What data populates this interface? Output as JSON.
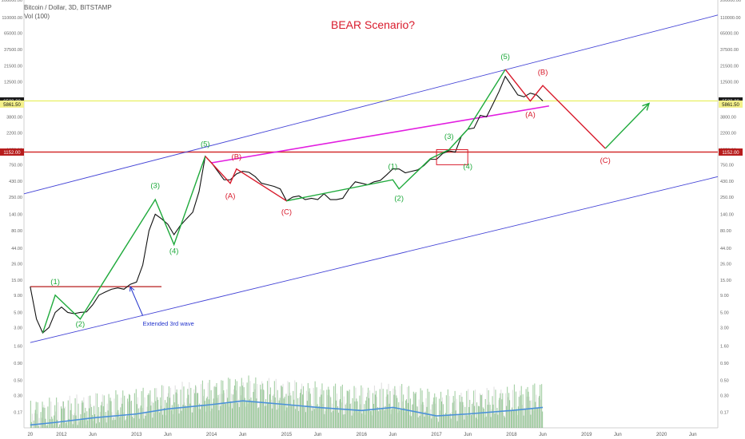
{
  "header": {
    "symbol": "Bitcoin / Dollar, 3D, BITSTAMP",
    "volume_label": "Vol (100)"
  },
  "chart_data": {
    "type": "line",
    "title": "BEAR Scenario?",
    "scale": "log",
    "ylim": [
      0.1,
      200000
    ],
    "xlim": [
      "2011-07",
      "2020-10"
    ],
    "y_ticks": [
      "200000.00",
      "110000.00",
      "65000.00",
      "37500.00",
      "21500.00",
      "12500.00",
      "3800.00",
      "2200.00",
      "1250.00",
      "750.00",
      "430.00",
      "250.00",
      "140.00",
      "80.00",
      "44.00",
      "26.00",
      "15.00",
      "9.00",
      "5.00",
      "3.00",
      "1.60",
      "0.90",
      "0.50",
      "0.30",
      "0.17"
    ],
    "x_ticks": [
      {
        "label": "20",
        "date": "2011-08"
      },
      {
        "label": "2012",
        "date": "2012-01"
      },
      {
        "label": "Jun",
        "date": "2012-06"
      },
      {
        "label": "2013",
        "date": "2013-01"
      },
      {
        "label": "Jun",
        "date": "2013-06"
      },
      {
        "label": "2014",
        "date": "2014-01"
      },
      {
        "label": "Jun",
        "date": "2014-06"
      },
      {
        "label": "2015",
        "date": "2015-01"
      },
      {
        "label": "Jun",
        "date": "2015-06"
      },
      {
        "label": "2016",
        "date": "2016-01"
      },
      {
        "label": "Jun",
        "date": "2016-06"
      },
      {
        "label": "2017",
        "date": "2017-01"
      },
      {
        "label": "Jun",
        "date": "2017-06"
      },
      {
        "label": "2018",
        "date": "2018-01"
      },
      {
        "label": "Jun",
        "date": "2018-06"
      },
      {
        "label": "2019",
        "date": "2019-01"
      },
      {
        "label": "Jun",
        "date": "2019-06"
      },
      {
        "label": "2020",
        "date": "2020-01"
      },
      {
        "label": "Jun",
        "date": "2020-06"
      }
    ],
    "price_labels": [
      {
        "label": "6523.28",
        "value": 6523.28,
        "style": "dark"
      },
      {
        "label": "5861.50",
        "value": 5861.5,
        "style": "yellow"
      },
      {
        "label": "1152.00",
        "value": 1152,
        "style": "red"
      }
    ],
    "price_series": {
      "x": [
        "2011-08",
        "2011-09",
        "2011-10",
        "2011-11",
        "2011-12",
        "2012-01",
        "2012-02",
        "2012-03",
        "2012-04",
        "2012-05",
        "2012-06",
        "2012-07",
        "2012-08",
        "2012-09",
        "2012-10",
        "2012-11",
        "2012-12",
        "2013-01",
        "2013-02",
        "2013-03",
        "2013-04",
        "2013-05",
        "2013-06",
        "2013-07",
        "2013-08",
        "2013-09",
        "2013-10",
        "2013-11",
        "2013-12",
        "2014-01",
        "2014-02",
        "2014-03",
        "2014-04",
        "2014-05",
        "2014-06",
        "2014-07",
        "2014-08",
        "2014-09",
        "2014-10",
        "2014-11",
        "2014-12",
        "2015-01",
        "2015-02",
        "2015-03",
        "2015-04",
        "2015-05",
        "2015-06",
        "2015-07",
        "2015-08",
        "2015-09",
        "2015-10",
        "2015-11",
        "2015-12",
        "2016-01",
        "2016-02",
        "2016-03",
        "2016-04",
        "2016-05",
        "2016-06",
        "2016-07",
        "2016-08",
        "2016-09",
        "2016-10",
        "2016-11",
        "2016-12",
        "2017-01",
        "2017-02",
        "2017-03",
        "2017-04",
        "2017-05",
        "2017-06",
        "2017-07",
        "2017-08",
        "2017-09",
        "2017-10",
        "2017-11",
        "2017-12",
        "2018-01",
        "2018-02",
        "2018-03",
        "2018-04",
        "2018-05",
        "2018-06"
      ],
      "y": [
        12,
        4,
        2.5,
        3,
        5,
        6,
        5,
        4.8,
        5,
        5.1,
        6.5,
        9,
        10,
        11,
        11.5,
        11,
        13,
        14,
        25,
        80,
        140,
        120,
        100,
        70,
        95,
        120,
        150,
        300,
        1000,
        800,
        600,
        450,
        450,
        550,
        600,
        580,
        500,
        400,
        380,
        360,
        330,
        220,
        250,
        260,
        230,
        240,
        230,
        280,
        230,
        230,
        240,
        330,
        420,
        400,
        380,
        420,
        440,
        530,
        650,
        650,
        570,
        600,
        630,
        730,
        900,
        900,
        1100,
        1200,
        1150,
        2000,
        2500,
        2600,
        4000,
        3800,
        5800,
        9000,
        15000,
        11000,
        8000,
        7500,
        8500,
        8000,
        6523
      ]
    },
    "volume_series": {
      "x": [
        "2011-08",
        "2011-12",
        "2012-06",
        "2013-01",
        "2013-06",
        "2014-01",
        "2014-06",
        "2015-01",
        "2015-06",
        "2016-01",
        "2016-06",
        "2017-01",
        "2017-06",
        "2018-01",
        "2018-06"
      ],
      "y": [
        0.11,
        0.12,
        0.14,
        0.16,
        0.19,
        0.22,
        0.25,
        0.22,
        0.2,
        0.18,
        0.2,
        0.15,
        0.16,
        0.18,
        0.2
      ]
    },
    "horizontal_levels": [
      {
        "value": 12,
        "from": "2011-08",
        "to": "2013-05",
        "color": "#b71c1c"
      },
      {
        "value": 1152,
        "from": "2011-07",
        "to": "2020-10",
        "color": "#d32f2f"
      },
      {
        "value": 6523.28,
        "from": "2011-07",
        "to": "2020-10",
        "color": "#e6ee55"
      }
    ],
    "channel_lines": [
      {
        "from": {
          "x": "2011-07",
          "y": 280
        },
        "to": {
          "x": "2020-10",
          "y": 120000
        },
        "color": "#4343d6"
      },
      {
        "from": {
          "x": "2011-08",
          "y": 1.8
        },
        "to": {
          "x": "2020-10",
          "y": 500
        },
        "color": "#4343d6"
      }
    ],
    "support_line": {
      "from": {
        "x": "2014-01",
        "y": 800
      },
      "to": {
        "x": "2018-07",
        "y": 5500
      },
      "color": "#e21ee0"
    },
    "green_waves": [
      {
        "points": [
          {
            "x": "2011-10",
            "y": 2.5
          },
          {
            "x": "2011-12",
            "y": 9
          },
          {
            "x": "2012-04",
            "y": 4
          },
          {
            "x": "2013-04",
            "y": 230
          },
          {
            "x": "2013-07",
            "y": 50
          },
          {
            "x": "2013-12",
            "y": 1000
          }
        ]
      },
      {
        "points": [
          {
            "x": "2015-01",
            "y": 220
          },
          {
            "x": "2016-06",
            "y": 450
          },
          {
            "x": "2016-07",
            "y": 330
          },
          {
            "x": "2016-12",
            "y": 920
          },
          {
            "x": "2017-03",
            "y": 1250
          },
          {
            "x": "2017-06",
            "y": 2500
          },
          {
            "x": "2017-12",
            "y": 19000
          }
        ]
      },
      {
        "points": [
          {
            "x": "2019-04",
            "y": 1300
          },
          {
            "x": "2019-11",
            "y": 6000
          }
        ],
        "arrow": true
      }
    ],
    "red_waves": [
      {
        "points": [
          {
            "x": "2013-12",
            "y": 1000
          },
          {
            "x": "2014-04",
            "y": 400
          },
          {
            "x": "2014-05",
            "y": 650
          },
          {
            "x": "2015-01",
            "y": 220
          }
        ]
      },
      {
        "points": [
          {
            "x": "2017-12",
            "y": 19000
          },
          {
            "x": "2018-04",
            "y": 6500
          },
          {
            "x": "2018-06",
            "y": 11000
          },
          {
            "x": "2019-04",
            "y": 1300
          }
        ]
      }
    ],
    "annotations": [
      {
        "text": "(1)",
        "x": "2011-12",
        "y": 13,
        "color": "green"
      },
      {
        "text": "(2)",
        "x": "2012-04",
        "y": 3.1,
        "color": "green"
      },
      {
        "text": "(3)",
        "x": "2013-04",
        "y": 340,
        "color": "green"
      },
      {
        "text": "(4)",
        "x": "2013-07",
        "y": 37,
        "color": "green"
      },
      {
        "text": "(5)",
        "x": "2013-12",
        "y": 1400,
        "color": "green"
      },
      {
        "text": "(A)",
        "x": "2014-04",
        "y": 240,
        "color": "red"
      },
      {
        "text": "(B)",
        "x": "2014-05",
        "y": 900,
        "color": "red"
      },
      {
        "text": "(C)",
        "x": "2015-01",
        "y": 140,
        "color": "red"
      },
      {
        "text": "(1)",
        "x": "2016-06",
        "y": 650,
        "color": "green"
      },
      {
        "text": "(2)",
        "x": "2016-07",
        "y": 220,
        "color": "green"
      },
      {
        "text": "(3)",
        "x": "2017-03",
        "y": 1800,
        "color": "green"
      },
      {
        "text": "(4)",
        "x": "2017-06",
        "y": 650,
        "color": "green"
      },
      {
        "text": "(5)",
        "x": "2017-12",
        "y": 27000,
        "color": "green"
      },
      {
        "text": "(A)",
        "x": "2018-04",
        "y": 3800,
        "color": "red"
      },
      {
        "text": "(B)",
        "x": "2018-06",
        "y": 16000,
        "color": "red"
      },
      {
        "text": "(C)",
        "x": "2019-04",
        "y": 800,
        "color": "red"
      },
      {
        "text": "Extended 3rd wave",
        "x": "2013-02",
        "y": 3.2,
        "color": "blue"
      }
    ],
    "colors": {
      "price": "#111111",
      "green": "#1faa3c",
      "red": "#d81b2c",
      "volume": "#5aa85a",
      "volume_ma": "#4a90d9"
    }
  }
}
